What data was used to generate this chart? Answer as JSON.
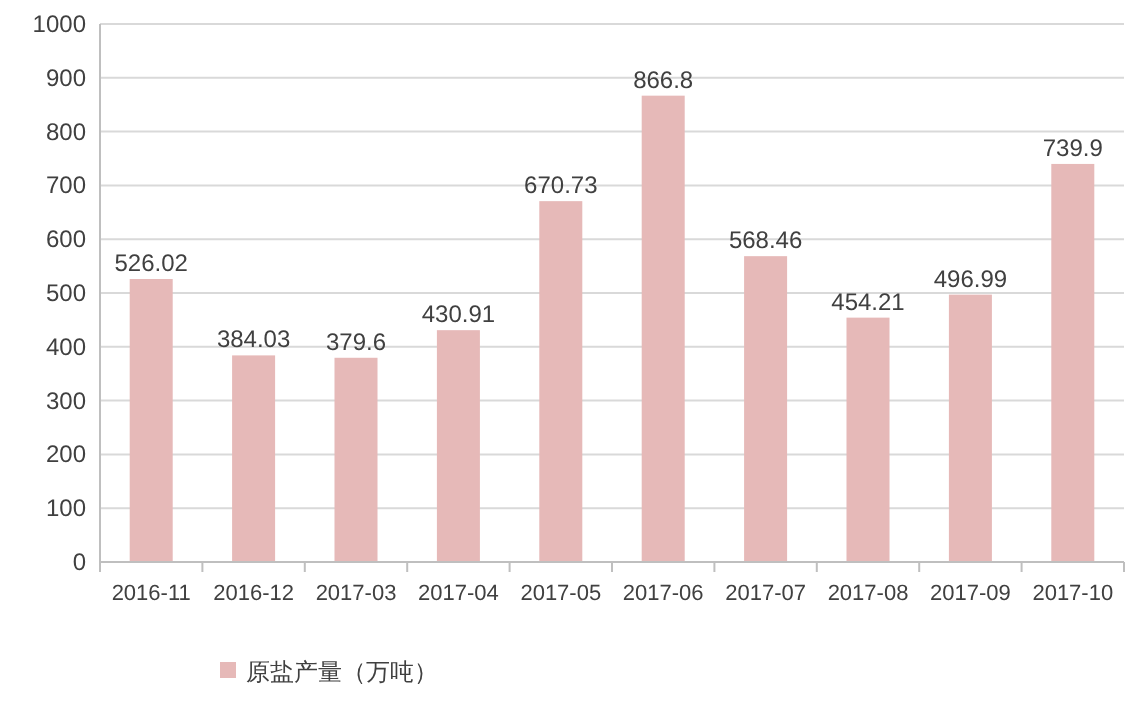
{
  "chart_data": {
    "type": "bar",
    "categories": [
      "2016-11",
      "2016-12",
      "2017-03",
      "2017-04",
      "2017-05",
      "2017-06",
      "2017-07",
      "2017-08",
      "2017-09",
      "2017-10"
    ],
    "series": [
      {
        "name": "原盐产量（万吨）",
        "color": "#e6b9b8",
        "values": [
          526.02,
          384.03,
          379.6,
          430.91,
          670.73,
          866.8,
          568.46,
          454.21,
          496.99,
          739.9
        ]
      }
    ],
    "ylim": [
      0,
      1000
    ],
    "yticks": [
      0,
      100,
      200,
      300,
      400,
      500,
      600,
      700,
      800,
      900,
      1000
    ],
    "grid": "y",
    "legend": "bottom",
    "data_labels": true
  }
}
